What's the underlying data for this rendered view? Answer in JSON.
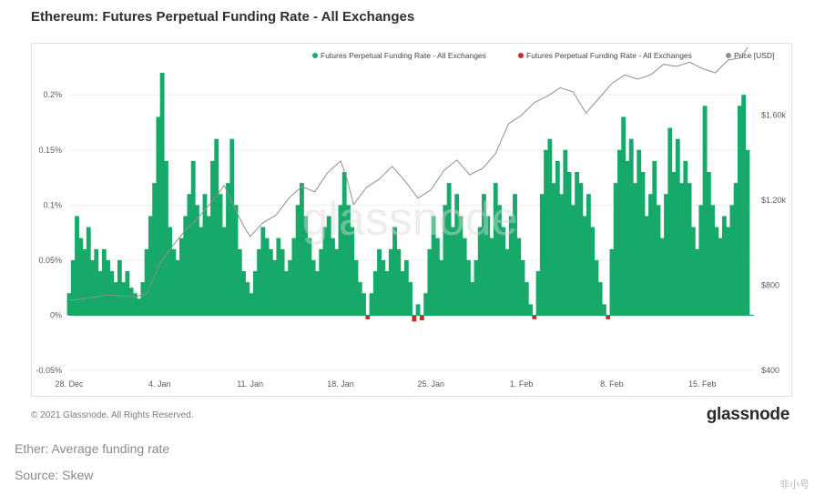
{
  "header": {
    "title": "Ethereum: Futures Perpetual Funding Rate - All Exchanges"
  },
  "footer": {
    "copyright": "© 2021 Glassnode. All Rights Reserved.",
    "brand": "glassnode"
  },
  "captions": {
    "line1": "Ether: Average funding rate",
    "line2": "Source: Skew"
  },
  "watermark": {
    "text": "glassnode",
    "corner": "非小号"
  },
  "colors": {
    "positive": "#16a96a",
    "negative": "#d62728",
    "price": "#8f8f8f",
    "grid": "#eeeeee",
    "axis_text": "#5a5a5a"
  },
  "chart_data": {
    "type": "bar",
    "series": [
      {
        "name": "Futures Perpetual Funding Rate - All Exchanges",
        "color": "#16a96a",
        "axis": "left"
      },
      {
        "name": "Futures Perpetual Funding Rate - All Exchanges",
        "color": "#d62728",
        "axis": "left"
      },
      {
        "name": "Price [USD]",
        "color": "#8f8f8f",
        "axis": "right",
        "type": "line"
      }
    ],
    "x_ticks": [
      "28. Dec",
      "4. Jan",
      "11. Jan",
      "18. Jan",
      "25. Jan",
      "1. Feb",
      "8. Feb",
      "15. Feb"
    ],
    "y_left": {
      "ticks": [
        -0.05,
        0,
        0.05,
        0.1,
        0.15,
        0.2
      ],
      "tick_labels": [
        "-0.05%",
        "0%",
        "0.05%",
        "0.1%",
        "0.15%",
        "0.2%"
      ],
      "ylim": [
        -0.05,
        0.22
      ]
    },
    "y_right": {
      "ticks": [
        400,
        800,
        1200,
        1600
      ],
      "tick_labels": [
        "$400",
        "$800",
        "$1.20k",
        "$1.60k"
      ],
      "ylim": [
        400,
        1800
      ]
    },
    "x_range_days": [
      0,
      53
    ],
    "funding": [
      [
        0.0,
        0.02
      ],
      [
        0.3,
        0.05
      ],
      [
        0.6,
        0.09
      ],
      [
        0.9,
        0.07
      ],
      [
        1.2,
        0.06
      ],
      [
        1.5,
        0.08
      ],
      [
        1.8,
        0.05
      ],
      [
        2.1,
        0.06
      ],
      [
        2.4,
        0.04
      ],
      [
        2.7,
        0.06
      ],
      [
        3.0,
        0.05
      ],
      [
        3.3,
        0.04
      ],
      [
        3.6,
        0.03
      ],
      [
        3.9,
        0.05
      ],
      [
        4.2,
        0.03
      ],
      [
        4.5,
        0.04
      ],
      [
        4.8,
        0.025
      ],
      [
        5.1,
        0.02
      ],
      [
        5.4,
        0.015
      ],
      [
        5.7,
        0.03
      ],
      [
        6.0,
        0.06
      ],
      [
        6.3,
        0.09
      ],
      [
        6.6,
        0.12
      ],
      [
        6.9,
        0.18
      ],
      [
        7.2,
        0.22
      ],
      [
        7.5,
        0.14
      ],
      [
        7.8,
        0.08
      ],
      [
        8.1,
        0.06
      ],
      [
        8.4,
        0.05
      ],
      [
        8.7,
        0.07
      ],
      [
        9.0,
        0.09
      ],
      [
        9.3,
        0.11
      ],
      [
        9.6,
        0.14
      ],
      [
        9.9,
        0.1
      ],
      [
        10.2,
        0.08
      ],
      [
        10.5,
        0.11
      ],
      [
        10.8,
        0.09
      ],
      [
        11.1,
        0.14
      ],
      [
        11.4,
        0.16
      ],
      [
        11.7,
        0.11
      ],
      [
        12.0,
        0.08
      ],
      [
        12.3,
        0.12
      ],
      [
        12.6,
        0.16
      ],
      [
        12.9,
        0.1
      ],
      [
        13.2,
        0.06
      ],
      [
        13.5,
        0.04
      ],
      [
        13.8,
        0.03
      ],
      [
        14.1,
        0.02
      ],
      [
        14.4,
        0.04
      ],
      [
        14.7,
        0.06
      ],
      [
        15.0,
        0.08
      ],
      [
        15.3,
        0.07
      ],
      [
        15.6,
        0.06
      ],
      [
        15.9,
        0.05
      ],
      [
        16.2,
        0.07
      ],
      [
        16.5,
        0.06
      ],
      [
        16.8,
        0.04
      ],
      [
        17.1,
        0.05
      ],
      [
        17.4,
        0.07
      ],
      [
        17.7,
        0.1
      ],
      [
        18.0,
        0.12
      ],
      [
        18.3,
        0.09
      ],
      [
        18.6,
        0.07
      ],
      [
        18.9,
        0.05
      ],
      [
        19.2,
        0.04
      ],
      [
        19.5,
        0.06
      ],
      [
        19.8,
        0.08
      ],
      [
        20.1,
        0.09
      ],
      [
        20.4,
        0.07
      ],
      [
        20.7,
        0.06
      ],
      [
        21.0,
        0.1
      ],
      [
        21.3,
        0.13
      ],
      [
        21.6,
        0.1
      ],
      [
        21.9,
        0.08
      ],
      [
        22.2,
        0.05
      ],
      [
        22.5,
        0.03
      ],
      [
        22.8,
        0.02
      ],
      [
        23.1,
        -0.002
      ],
      [
        23.4,
        0.02
      ],
      [
        23.7,
        0.04
      ],
      [
        24.0,
        0.06
      ],
      [
        24.3,
        0.05
      ],
      [
        24.6,
        0.04
      ],
      [
        24.9,
        0.06
      ],
      [
        25.2,
        0.08
      ],
      [
        25.5,
        0.06
      ],
      [
        25.8,
        0.04
      ],
      [
        26.1,
        0.05
      ],
      [
        26.4,
        0.03
      ],
      [
        26.7,
        -0.004
      ],
      [
        27.0,
        0.01
      ],
      [
        27.3,
        -0.003
      ],
      [
        27.6,
        0.02
      ],
      [
        27.9,
        0.06
      ],
      [
        28.2,
        0.09
      ],
      [
        28.5,
        0.07
      ],
      [
        28.8,
        0.05
      ],
      [
        29.1,
        0.1
      ],
      [
        29.4,
        0.12
      ],
      [
        29.7,
        0.08
      ],
      [
        30.0,
        0.11
      ],
      [
        30.3,
        0.09
      ],
      [
        30.6,
        0.07
      ],
      [
        30.9,
        0.05
      ],
      [
        31.2,
        0.03
      ],
      [
        31.5,
        0.05
      ],
      [
        31.8,
        0.08
      ],
      [
        32.1,
        0.11
      ],
      [
        32.4,
        0.09
      ],
      [
        32.7,
        0.07
      ],
      [
        33.0,
        0.12
      ],
      [
        33.3,
        0.1
      ],
      [
        33.6,
        0.08
      ],
      [
        33.9,
        0.06
      ],
      [
        34.2,
        0.09
      ],
      [
        34.5,
        0.11
      ],
      [
        34.8,
        0.07
      ],
      [
        35.1,
        0.05
      ],
      [
        35.4,
        0.03
      ],
      [
        35.7,
        0.01
      ],
      [
        36.0,
        -0.002
      ],
      [
        36.3,
        0.04
      ],
      [
        36.6,
        0.11
      ],
      [
        36.9,
        0.15
      ],
      [
        37.2,
        0.16
      ],
      [
        37.5,
        0.12
      ],
      [
        37.8,
        0.14
      ],
      [
        38.1,
        0.11
      ],
      [
        38.4,
        0.15
      ],
      [
        38.7,
        0.13
      ],
      [
        39.0,
        0.1
      ],
      [
        39.3,
        0.13
      ],
      [
        39.6,
        0.12
      ],
      [
        39.9,
        0.09
      ],
      [
        40.2,
        0.11
      ],
      [
        40.5,
        0.08
      ],
      [
        40.8,
        0.05
      ],
      [
        41.1,
        0.03
      ],
      [
        41.4,
        0.01
      ],
      [
        41.7,
        -0.002
      ],
      [
        42.0,
        0.06
      ],
      [
        42.3,
        0.12
      ],
      [
        42.6,
        0.15
      ],
      [
        42.9,
        0.18
      ],
      [
        43.2,
        0.14
      ],
      [
        43.5,
        0.16
      ],
      [
        43.8,
        0.12
      ],
      [
        44.1,
        0.15
      ],
      [
        44.4,
        0.13
      ],
      [
        44.7,
        0.09
      ],
      [
        45.0,
        0.11
      ],
      [
        45.3,
        0.14
      ],
      [
        45.6,
        0.1
      ],
      [
        45.9,
        0.07
      ],
      [
        46.2,
        0.11
      ],
      [
        46.5,
        0.17
      ],
      [
        46.8,
        0.13
      ],
      [
        47.1,
        0.16
      ],
      [
        47.4,
        0.12
      ],
      [
        47.7,
        0.14
      ],
      [
        48.0,
        0.12
      ],
      [
        48.3,
        0.08
      ],
      [
        48.6,
        0.06
      ],
      [
        48.9,
        0.1
      ],
      [
        49.2,
        0.19
      ],
      [
        49.5,
        0.13
      ],
      [
        49.8,
        0.1
      ],
      [
        50.1,
        0.08
      ],
      [
        50.4,
        0.07
      ],
      [
        50.7,
        0.09
      ],
      [
        51.0,
        0.08
      ],
      [
        51.3,
        0.1
      ],
      [
        51.6,
        0.12
      ],
      [
        51.9,
        0.19
      ],
      [
        52.2,
        0.2
      ],
      [
        52.5,
        0.15
      ]
    ],
    "price": [
      [
        0.0,
        730
      ],
      [
        1.0,
        735
      ],
      [
        2.0,
        745
      ],
      [
        3.0,
        755
      ],
      [
        4.0,
        750
      ],
      [
        5.0,
        745
      ],
      [
        6.0,
        760
      ],
      [
        7.0,
        900
      ],
      [
        8.0,
        985
      ],
      [
        9.0,
        1060
      ],
      [
        10.0,
        1120
      ],
      [
        11.0,
        1190
      ],
      [
        12.0,
        1270
      ],
      [
        12.5,
        1200
      ],
      [
        13.5,
        1080
      ],
      [
        14.0,
        1030
      ],
      [
        15.0,
        1095
      ],
      [
        16.0,
        1130
      ],
      [
        17.0,
        1210
      ],
      [
        18.0,
        1265
      ],
      [
        19.0,
        1240
      ],
      [
        20.0,
        1330
      ],
      [
        21.0,
        1385
      ],
      [
        21.5,
        1300
      ],
      [
        22.0,
        1180
      ],
      [
        23.0,
        1260
      ],
      [
        24.0,
        1300
      ],
      [
        25.0,
        1360
      ],
      [
        26.0,
        1290
      ],
      [
        27.0,
        1210
      ],
      [
        28.0,
        1250
      ],
      [
        29.0,
        1340
      ],
      [
        30.0,
        1390
      ],
      [
        31.0,
        1320
      ],
      [
        32.0,
        1350
      ],
      [
        33.0,
        1420
      ],
      [
        34.0,
        1560
      ],
      [
        35.0,
        1600
      ],
      [
        36.0,
        1660
      ],
      [
        37.0,
        1690
      ],
      [
        38.0,
        1730
      ],
      [
        39.0,
        1710
      ],
      [
        40.0,
        1610
      ],
      [
        41.0,
        1680
      ],
      [
        42.0,
        1750
      ],
      [
        43.0,
        1790
      ],
      [
        44.0,
        1770
      ],
      [
        45.0,
        1790
      ],
      [
        46.0,
        1840
      ],
      [
        47.0,
        1830
      ],
      [
        48.0,
        1850
      ],
      [
        49.0,
        1820
      ],
      [
        50.0,
        1800
      ],
      [
        51.0,
        1860
      ],
      [
        52.0,
        1870
      ],
      [
        52.5,
        1920
      ]
    ]
  }
}
